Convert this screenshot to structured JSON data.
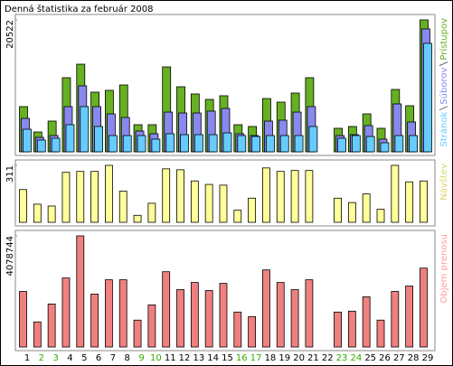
{
  "title": "Denná štatistika za február 2008",
  "chart_data": [
    {
      "type": "bar",
      "ylim": [
        0,
        20522
      ],
      "yticks": [
        20522
      ],
      "series": [
        {
          "name": "Prístupov",
          "color": "#66b022",
          "values": [
            7030,
            3090,
            4780,
            11530,
            13630,
            9280,
            9560,
            10400,
            4220,
            4220,
            13210,
            10120,
            9000,
            8150,
            8720,
            4220,
            3940,
            8290,
            7730,
            9140,
            11530,
            null,
            3660,
            3940,
            5900,
            3660,
            9700,
            7170,
            20522
          ]
        },
        {
          "name": "Súborov",
          "color": "#8888ee",
          "values": [
            5200,
            2250,
            2530,
            7030,
            10260,
            7030,
            5900,
            5340,
            3230,
            2810,
            6180,
            6040,
            6040,
            6330,
            6750,
            2810,
            2530,
            4780,
            4920,
            6180,
            7030,
            null,
            2530,
            2670,
            4080,
            1970,
            7450,
            4640,
            19120
          ]
        },
        {
          "name": "Stránok",
          "color": "#66ccff",
          "values": [
            3510,
            1830,
            2110,
            4220,
            7030,
            3940,
            2530,
            2530,
            2530,
            1970,
            2810,
            2670,
            2670,
            2670,
            2950,
            2530,
            2390,
            2530,
            2530,
            2530,
            3940,
            null,
            2110,
            2530,
            2390,
            1410,
            2530,
            2530,
            16870
          ]
        }
      ]
    },
    {
      "type": "bar",
      "ylim": [
        0,
        311
      ],
      "yticks": [
        311
      ],
      "series": [
        {
          "name": "Návštev",
          "color": "#ffff99",
          "label_color": "#d8d870",
          "values": [
            179,
            99,
            89,
            273,
            278,
            278,
            311,
            170,
            38,
            104,
            292,
            287,
            226,
            207,
            203,
            66,
            132,
            297,
            278,
            283,
            283,
            null,
            132,
            108,
            155,
            71,
            311,
            221,
            226
          ]
        }
      ]
    },
    {
      "type": "bar",
      "ylim": [
        0,
        4078744
      ],
      "yticks": [
        4078744
      ],
      "categories": [
        "1",
        "2",
        "3",
        "4",
        "5",
        "6",
        "7",
        "8",
        "9",
        "10",
        "11",
        "12",
        "13",
        "14",
        "15",
        "16",
        "17",
        "18",
        "19",
        "20",
        "21",
        "22",
        "23",
        "24",
        "25",
        "26",
        "27",
        "28",
        "29"
      ],
      "category_colors": [
        "#000000",
        "#33aa00",
        "#33aa00",
        "#000000",
        "#000000",
        "#000000",
        "#000000",
        "#000000",
        "#33aa00",
        "#33aa00",
        "#000000",
        "#000000",
        "#000000",
        "#000000",
        "#000000",
        "#33aa00",
        "#33aa00",
        "#000000",
        "#000000",
        "#000000",
        "#000000",
        "#000000",
        "#33aa00",
        "#33aa00",
        "#000000",
        "#000000",
        "#000000",
        "#000000",
        "#000000"
      ],
      "series": [
        {
          "name": "Objem prenosu",
          "color": "#f08080",
          "label_color": "#ff9a9a",
          "values": [
            2039000,
            921000,
            1579000,
            2533000,
            4078744,
            1941000,
            2467000,
            2467000,
            987000,
            1546000,
            2763000,
            2105000,
            2368000,
            2072000,
            2335000,
            1283000,
            1118000,
            2829000,
            2368000,
            2105000,
            2467000,
            null,
            1283000,
            1316000,
            1842000,
            987000,
            2039000,
            2237000,
            2895000
          ]
        }
      ]
    }
  ]
}
